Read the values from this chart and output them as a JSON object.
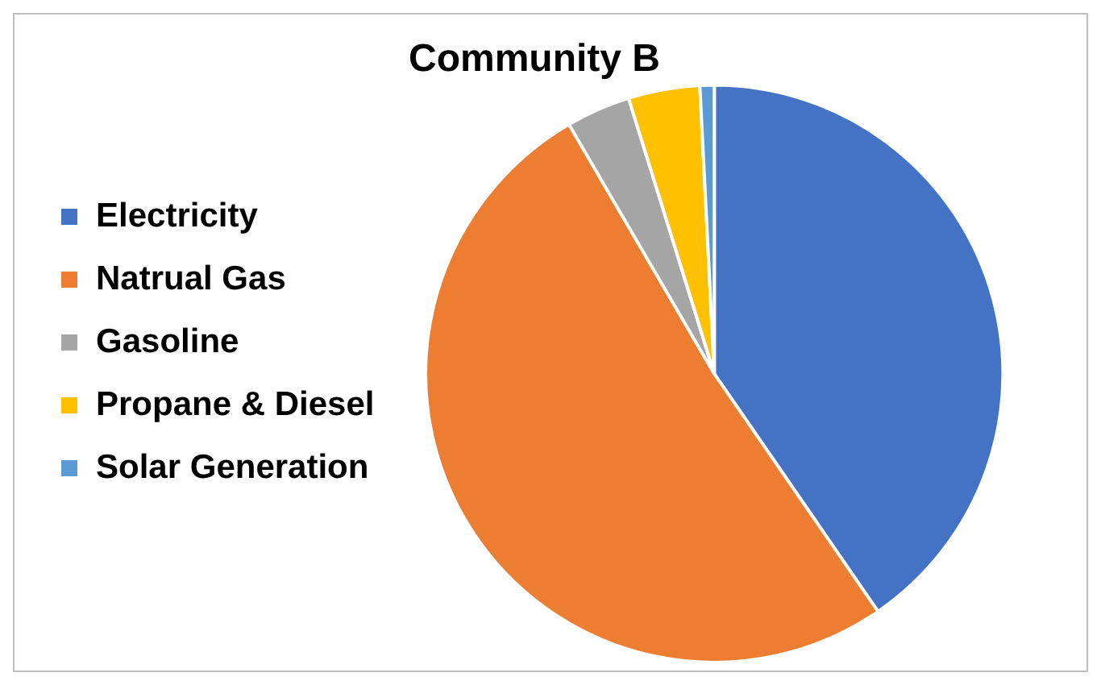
{
  "chart_data": {
    "type": "pie",
    "title": "Community B",
    "categories": [
      "Electricity",
      "Natrual Gas",
      "Gasoline",
      "Propane & Diesel",
      "Solar Generation"
    ],
    "values": [
      40.4,
      51.2,
      3.6,
      4.0,
      0.8
    ],
    "colors": [
      "#4472c4",
      "#ed7d31",
      "#a5a5a5",
      "#ffc000",
      "#5b9bd5"
    ],
    "legend": "left"
  }
}
